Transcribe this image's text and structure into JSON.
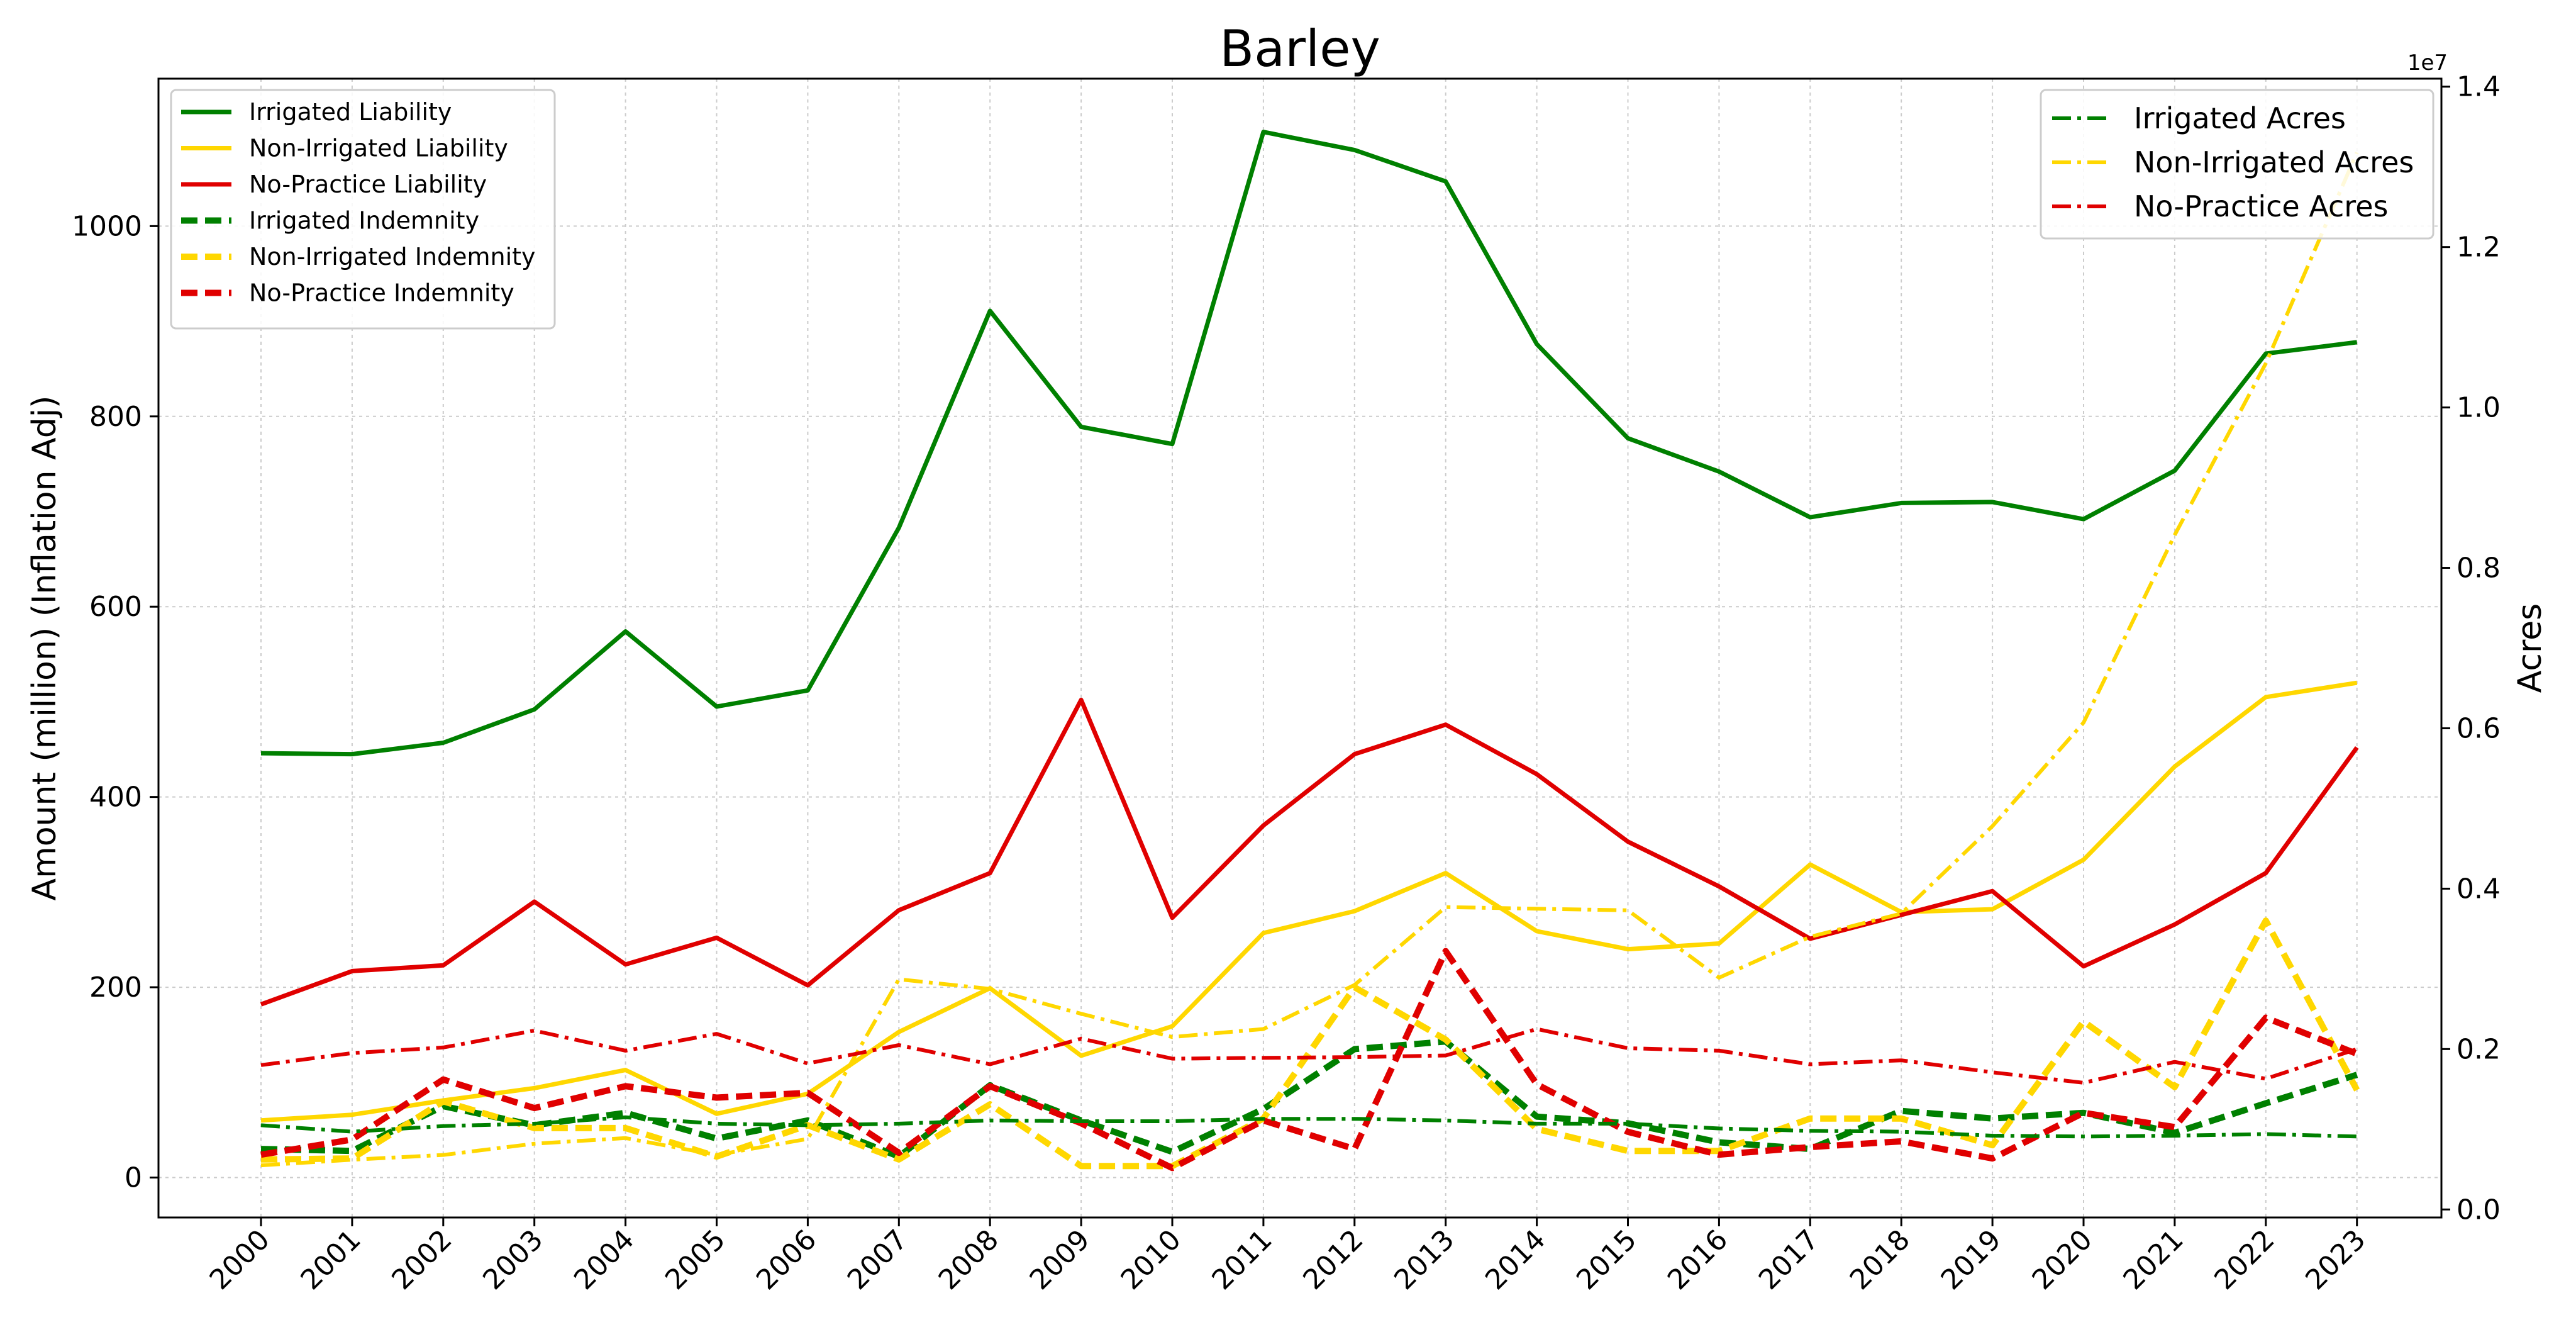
{
  "chart_data": {
    "type": "line",
    "title": "Barley",
    "xlabel": "",
    "ylabel": "Amount (million) (Inflation Adj)",
    "y2label": "Acres",
    "y2_offset_label": "1e7",
    "x": [
      "2000",
      "2001",
      "2002",
      "2003",
      "2004",
      "2005",
      "2006",
      "2007",
      "2008",
      "2009",
      "2010",
      "2011",
      "2012",
      "2013",
      "2014",
      "2015",
      "2016",
      "2017",
      "2018",
      "2019",
      "2020",
      "2021",
      "2022",
      "2023"
    ],
    "ylim": [
      -42,
      1155
    ],
    "y_ticks": [
      "0",
      "200",
      "400",
      "600",
      "800",
      "1000"
    ],
    "y2lim": [
      -0.01,
      1.41
    ],
    "y2_ticks": [
      "0.0",
      "0.2",
      "0.4",
      "0.6",
      "0.8",
      "1.0",
      "1.2",
      "1.4"
    ],
    "grid": true,
    "legend_left_position": "upper-left",
    "legend_right_position": "upper-right",
    "colors": {
      "irrigated": "#008000",
      "non_irrigated": "#FFD700",
      "no_practice": "#E00000"
    },
    "series": [
      {
        "name": "Irrigated Liability",
        "axis": "left",
        "style": "solid",
        "color": "#008000",
        "values": [
          446,
          445,
          457,
          492,
          574,
          495,
          512,
          683,
          911,
          789,
          771,
          1099,
          1080,
          1047,
          876,
          777,
          742,
          694,
          709,
          710,
          692,
          743,
          866,
          878
        ]
      },
      {
        "name": "Non-Irrigated Liability",
        "axis": "left",
        "style": "solid",
        "color": "#FFD700",
        "values": [
          60,
          66,
          81,
          94,
          113,
          67,
          88,
          153,
          199,
          128,
          159,
          257,
          280,
          320,
          259,
          240,
          246,
          329,
          279,
          282,
          334,
          432,
          505,
          520
        ]
      },
      {
        "name": "No-Practice Liability",
        "axis": "left",
        "style": "solid",
        "color": "#E00000",
        "values": [
          182,
          217,
          223,
          290,
          224,
          252,
          202,
          281,
          320,
          502,
          273,
          370,
          445,
          476,
          424,
          353,
          306,
          251,
          276,
          301,
          222,
          266,
          320,
          452
        ]
      },
      {
        "name": "Irrigated Indemnity",
        "axis": "left",
        "style": "dashed",
        "color": "#008000",
        "values": [
          30,
          28,
          75,
          55,
          68,
          41,
          60,
          22,
          97,
          60,
          27,
          72,
          135,
          143,
          64,
          57,
          37,
          30,
          70,
          62,
          68,
          47,
          78,
          108
        ]
      },
      {
        "name": "Non-Irrigated Indemnity",
        "axis": "left",
        "style": "dashed",
        "color": "#FFD700",
        "values": [
          19,
          20,
          80,
          52,
          52,
          22,
          55,
          19,
          77,
          12,
          12,
          62,
          200,
          145,
          51,
          28,
          28,
          62,
          62,
          34,
          164,
          95,
          270,
          92
        ]
      },
      {
        "name": "No-Practice Indemnity",
        "axis": "left",
        "style": "dashed",
        "color": "#E00000",
        "values": [
          24,
          40,
          103,
          73,
          96,
          84,
          89,
          26,
          96,
          57,
          10,
          60,
          30,
          238,
          98,
          48,
          24,
          32,
          38,
          20,
          68,
          53,
          168,
          130
        ]
      },
      {
        "name": "Irrigated Acres",
        "axis": "right",
        "style": "dashdot",
        "color": "#008000",
        "values": [
          0.105,
          0.097,
          0.104,
          0.107,
          0.115,
          0.107,
          0.105,
          0.107,
          0.111,
          0.11,
          0.11,
          0.113,
          0.113,
          0.111,
          0.107,
          0.107,
          0.101,
          0.098,
          0.097,
          0.092,
          0.091,
          0.092,
          0.094,
          0.091
        ]
      },
      {
        "name": "Non-Irrigated Acres",
        "axis": "right",
        "style": "dashdot",
        "color": "#FFD700",
        "values": [
          0.055,
          0.062,
          0.068,
          0.082,
          0.089,
          0.068,
          0.088,
          0.287,
          0.275,
          0.244,
          0.215,
          0.225,
          0.28,
          0.377,
          0.375,
          0.373,
          0.289,
          0.34,
          0.369,
          0.478,
          0.607,
          0.841,
          1.055,
          1.318
        ]
      },
      {
        "name": "No-Practice Acres",
        "axis": "right",
        "style": "dashdot",
        "color": "#E00000",
        "values": [
          0.18,
          0.195,
          0.202,
          0.223,
          0.198,
          0.219,
          0.182,
          0.205,
          0.181,
          0.213,
          0.188,
          0.189,
          0.19,
          0.192,
          0.225,
          0.201,
          0.198,
          0.181,
          0.186,
          0.171,
          0.158,
          0.184,
          0.163,
          0.2
        ]
      }
    ]
  }
}
